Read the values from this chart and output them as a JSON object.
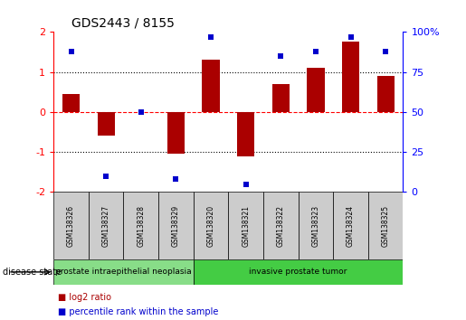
{
  "title": "GDS2443 / 8155",
  "samples": [
    "GSM138326",
    "GSM138327",
    "GSM138328",
    "GSM138329",
    "GSM138320",
    "GSM138321",
    "GSM138322",
    "GSM138323",
    "GSM138324",
    "GSM138325"
  ],
  "log2_ratio": [
    0.45,
    -0.6,
    0.0,
    -1.05,
    1.3,
    -1.1,
    0.7,
    1.1,
    1.75,
    0.9
  ],
  "percentile_rank": [
    88,
    10,
    50,
    8,
    97,
    5,
    85,
    88,
    97,
    88
  ],
  "bar_color": "#aa0000",
  "dot_color": "#0000cc",
  "ylim_left": [
    -2.0,
    2.0
  ],
  "ylim_right": [
    0,
    100
  ],
  "yticks_left": [
    -2,
    -1,
    0,
    1,
    2
  ],
  "yticks_right": [
    0,
    25,
    50,
    75,
    100
  ],
  "yticklabels_left": [
    "-2",
    "-1",
    "0",
    "1",
    "2"
  ],
  "yticklabels_right": [
    "0",
    "25",
    "50",
    "75",
    "100%"
  ],
  "disease_groups": [
    {
      "label": "prostate intraepithelial neoplasia",
      "indices": [
        0,
        1,
        2,
        3
      ],
      "color": "#88dd88"
    },
    {
      "label": "invasive prostate tumor",
      "indices": [
        4,
        5,
        6,
        7,
        8,
        9
      ],
      "color": "#44cc44"
    }
  ],
  "legend_items": [
    {
      "label": "log2 ratio",
      "color": "#aa0000"
    },
    {
      "label": "percentile rank within the sample",
      "color": "#0000cc"
    }
  ],
  "disease_state_label": "disease state"
}
